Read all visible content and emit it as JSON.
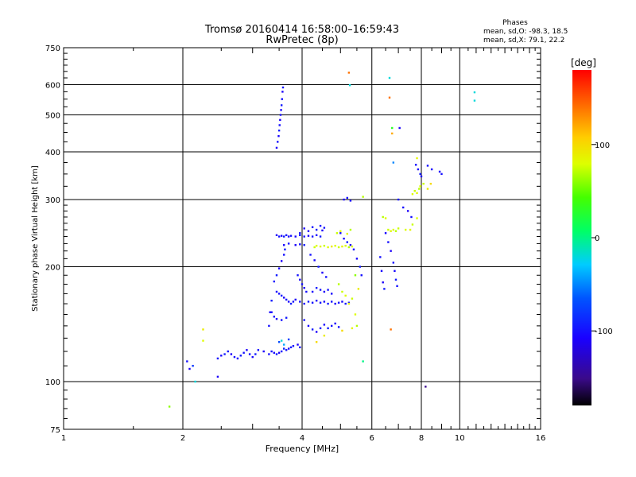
{
  "title_line1": "Tromsø 20160414 16:58:00–16:59:43",
  "title_line2": "RwPretec (8p)",
  "stats": {
    "heading": "Phases",
    "line_o": "mean, sd,O: -98.3, 18.5",
    "line_x": "mean, sd,X:  79.1, 22.2"
  },
  "colorbar": {
    "label": "[deg]",
    "ticks": [
      {
        "value": 100,
        "label": "100"
      },
      {
        "value": 0,
        "label": "0"
      },
      {
        "value": -100,
        "label": "-100"
      }
    ],
    "range": [
      -180,
      180
    ]
  },
  "chart_data": {
    "type": "scatter",
    "xlabel": "Frequency [MHz]",
    "ylabel": "Stationary phase Virtual Height [km]",
    "xscale": "log",
    "yscale": "log",
    "xlim": [
      1,
      16
    ],
    "ylim": [
      75,
      750
    ],
    "xticks": [
      {
        "value": 1,
        "label": "1"
      },
      {
        "value": 2,
        "label": "2"
      },
      {
        "value": 4,
        "label": "4"
      },
      {
        "value": 6,
        "label": "6"
      },
      {
        "value": 8,
        "label": "8"
      },
      {
        "value": 10,
        "label": "10"
      },
      {
        "value": 16,
        "label": "16"
      }
    ],
    "yticks": [
      {
        "value": 75,
        "label": "75"
      },
      {
        "value": 100,
        "label": "100"
      },
      {
        "value": 200,
        "label": "200"
      },
      {
        "value": 300,
        "label": "300"
      },
      {
        "value": 400,
        "label": "400"
      },
      {
        "value": 500,
        "label": "500"
      },
      {
        "value": 600,
        "label": "600"
      },
      {
        "value": 750,
        "label": "750"
      }
    ],
    "grid": true,
    "points": [
      [
        1.85,
        86,
        60
      ],
      [
        2.05,
        113,
        -100
      ],
      [
        2.08,
        108,
        -110
      ],
      [
        2.12,
        110,
        -80
      ],
      [
        2.15,
        100,
        -20
      ],
      [
        2.25,
        137,
        90
      ],
      [
        2.25,
        128,
        80
      ],
      [
        2.45,
        103,
        -110
      ],
      [
        2.45,
        115,
        -100
      ],
      [
        2.5,
        117,
        -105
      ],
      [
        2.55,
        118,
        -95
      ],
      [
        2.6,
        120,
        -100
      ],
      [
        2.65,
        118,
        -110
      ],
      [
        2.7,
        116,
        -100
      ],
      [
        2.75,
        115,
        -105
      ],
      [
        2.8,
        117,
        -95
      ],
      [
        2.85,
        119,
        -100
      ],
      [
        2.9,
        121,
        -110
      ],
      [
        2.95,
        118,
        -100
      ],
      [
        3.0,
        116,
        -105
      ],
      [
        3.05,
        118,
        -95
      ],
      [
        3.1,
        121,
        -100
      ],
      [
        3.2,
        120,
        -110
      ],
      [
        3.3,
        118,
        -100
      ],
      [
        3.35,
        120,
        -100
      ],
      [
        3.4,
        119,
        -105
      ],
      [
        3.45,
        118,
        -95
      ],
      [
        3.5,
        119,
        -110
      ],
      [
        3.55,
        120,
        -100
      ],
      [
        3.6,
        122,
        -90
      ],
      [
        3.65,
        121,
        -100
      ],
      [
        3.7,
        122,
        -105
      ],
      [
        3.75,
        123,
        -95
      ],
      [
        3.8,
        124,
        -100
      ],
      [
        3.9,
        125,
        -110
      ],
      [
        3.95,
        123,
        -100
      ],
      [
        3.5,
        127,
        -70
      ],
      [
        3.6,
        125,
        -40
      ],
      [
        3.7,
        129,
        -75
      ],
      [
        3.55,
        128,
        -20
      ],
      [
        3.3,
        140,
        -100
      ],
      [
        3.32,
        152,
        -105
      ],
      [
        3.35,
        163,
        -95
      ],
      [
        3.45,
        410,
        -110
      ],
      [
        3.47,
        425,
        -100
      ],
      [
        3.49,
        440,
        -105
      ],
      [
        3.5,
        455,
        -95
      ],
      [
        3.51,
        470,
        -100
      ],
      [
        3.52,
        485,
        -110
      ],
      [
        3.53,
        500,
        -100
      ],
      [
        3.54,
        515,
        -105
      ],
      [
        3.55,
        530,
        -95
      ],
      [
        3.56,
        550,
        -100
      ],
      [
        3.57,
        575,
        -110
      ],
      [
        3.58,
        590,
        -100
      ],
      [
        3.45,
        242,
        -110
      ],
      [
        3.5,
        240,
        -100
      ],
      [
        3.55,
        241,
        -105
      ],
      [
        3.6,
        240,
        -95
      ],
      [
        3.65,
        242,
        -100
      ],
      [
        3.7,
        240,
        -110
      ],
      [
        3.75,
        241,
        -100
      ],
      [
        3.85,
        240,
        -105
      ],
      [
        3.95,
        242,
        -95
      ],
      [
        4.05,
        240,
        -100
      ],
      [
        4.15,
        241,
        -110
      ],
      [
        4.25,
        240,
        -100
      ],
      [
        4.35,
        242,
        -105
      ],
      [
        4.45,
        240,
        -95
      ],
      [
        3.95,
        245,
        -100
      ],
      [
        4.05,
        252,
        -105
      ],
      [
        4.15,
        248,
        -110
      ],
      [
        4.25,
        254,
        -100
      ],
      [
        4.35,
        250,
        -95
      ],
      [
        4.45,
        256,
        -100
      ],
      [
        4.5,
        249,
        -110
      ],
      [
        4.55,
        253,
        -100
      ],
      [
        3.6,
        228,
        -105
      ],
      [
        3.7,
        230,
        -100
      ],
      [
        3.85,
        228,
        -110
      ],
      [
        3.95,
        229,
        -100
      ],
      [
        4.05,
        228,
        -95
      ],
      [
        3.45,
        172,
        -105
      ],
      [
        3.5,
        170,
        -100
      ],
      [
        3.55,
        168,
        -95
      ],
      [
        3.6,
        166,
        -110
      ],
      [
        3.65,
        164,
        -100
      ],
      [
        3.7,
        162,
        -105
      ],
      [
        3.75,
        160,
        -95
      ],
      [
        3.8,
        162,
        -100
      ],
      [
        3.85,
        164,
        -110
      ],
      [
        3.95,
        162,
        -100
      ],
      [
        4.05,
        160,
        -105
      ],
      [
        4.15,
        162,
        -95
      ],
      [
        4.25,
        161,
        -100
      ],
      [
        4.35,
        163,
        -110
      ],
      [
        4.45,
        161,
        -100
      ],
      [
        4.55,
        162,
        -105
      ],
      [
        4.65,
        160,
        -95
      ],
      [
        4.75,
        162,
        -100
      ],
      [
        4.85,
        160,
        -110
      ],
      [
        4.95,
        161,
        -100
      ],
      [
        5.05,
        162,
        -105
      ],
      [
        5.15,
        160,
        -95
      ],
      [
        5.25,
        161,
        -100
      ],
      [
        3.4,
        183,
        -100
      ],
      [
        3.45,
        190,
        -95
      ],
      [
        3.5,
        198,
        -105
      ],
      [
        3.55,
        207,
        -110
      ],
      [
        3.6,
        215,
        -100
      ],
      [
        3.62,
        222,
        -95
      ],
      [
        3.35,
        152,
        -105
      ],
      [
        3.4,
        148,
        -100
      ],
      [
        3.45,
        146,
        -110
      ],
      [
        3.55,
        145,
        -100
      ],
      [
        3.65,
        147,
        -95
      ],
      [
        3.9,
        190,
        -100
      ],
      [
        3.95,
        185,
        -105
      ],
      [
        4.0,
        180,
        -100
      ],
      [
        4.05,
        176,
        -110
      ],
      [
        4.1,
        172,
        -100
      ],
      [
        4.25,
        172,
        -105
      ],
      [
        4.35,
        176,
        -95
      ],
      [
        4.45,
        174,
        -100
      ],
      [
        4.55,
        172,
        -110
      ],
      [
        4.65,
        174,
        -100
      ],
      [
        4.75,
        170,
        -105
      ],
      [
        4.05,
        145,
        -100
      ],
      [
        4.15,
        140,
        -105
      ],
      [
        4.25,
        137,
        -95
      ],
      [
        4.35,
        135,
        -110
      ],
      [
        4.45,
        138,
        -100
      ],
      [
        4.55,
        141,
        -105
      ],
      [
        4.65,
        138,
        -95
      ],
      [
        4.75,
        140,
        -100
      ],
      [
        4.85,
        142,
        -110
      ],
      [
        4.95,
        139,
        -100
      ],
      [
        4.2,
        215,
        -100
      ],
      [
        4.3,
        208,
        -105
      ],
      [
        4.4,
        200,
        -95
      ],
      [
        4.5,
        193,
        -110
      ],
      [
        4.6,
        188,
        -100
      ],
      [
        5.0,
        245,
        -100
      ],
      [
        5.1,
        237,
        -105
      ],
      [
        5.2,
        232,
        -95
      ],
      [
        5.3,
        228,
        -110
      ],
      [
        5.4,
        222,
        -100
      ],
      [
        5.5,
        210,
        -105
      ],
      [
        5.6,
        200,
        -95
      ],
      [
        5.65,
        190,
        -100
      ],
      [
        5.1,
        300,
        -110
      ],
      [
        5.2,
        303,
        -100
      ],
      [
        5.3,
        298,
        -105
      ],
      [
        4.3,
        225,
        75
      ],
      [
        4.35,
        227,
        80
      ],
      [
        4.45,
        226,
        85
      ],
      [
        4.55,
        227,
        75
      ],
      [
        4.65,
        225,
        80
      ],
      [
        4.75,
        226,
        90
      ],
      [
        4.85,
        227,
        80
      ],
      [
        4.95,
        225,
        75
      ],
      [
        5.05,
        226,
        85
      ],
      [
        5.15,
        227,
        80
      ],
      [
        5.25,
        225,
        70
      ],
      [
        5.35,
        226,
        80
      ],
      [
        4.9,
        245,
        75
      ],
      [
        5.0,
        248,
        80
      ],
      [
        5.2,
        244,
        85
      ],
      [
        5.3,
        250,
        70
      ],
      [
        4.95,
        180,
        70
      ],
      [
        5.05,
        172,
        75
      ],
      [
        5.15,
        168,
        80
      ],
      [
        5.25,
        160,
        85
      ],
      [
        5.35,
        165,
        75
      ],
      [
        5.45,
        150,
        80
      ],
      [
        5.5,
        140,
        70
      ],
      [
        5.55,
        175,
        90
      ],
      [
        5.45,
        190,
        60
      ],
      [
        5.7,
        305,
        70
      ],
      [
        5.7,
        113,
        0
      ],
      [
        6.4,
        270,
        70
      ],
      [
        6.5,
        268,
        80
      ],
      [
        6.6,
        250,
        75
      ],
      [
        6.7,
        248,
        85
      ],
      [
        6.8,
        250,
        80
      ],
      [
        6.9,
        248,
        70
      ],
      [
        7.0,
        252,
        75
      ],
      [
        7.3,
        250,
        80
      ],
      [
        7.5,
        250,
        85
      ],
      [
        7.6,
        258,
        75
      ],
      [
        7.8,
        268,
        80
      ],
      [
        6.5,
        245,
        -105
      ],
      [
        6.6,
        232,
        -100
      ],
      [
        6.7,
        220,
        -110
      ],
      [
        6.8,
        205,
        -100
      ],
      [
        6.85,
        195,
        -105
      ],
      [
        6.9,
        185,
        -95
      ],
      [
        6.95,
        178,
        -100
      ],
      [
        6.3,
        212,
        -100
      ],
      [
        6.35,
        195,
        -105
      ],
      [
        6.4,
        182,
        -110
      ],
      [
        6.45,
        175,
        -95
      ],
      [
        7.0,
        300,
        -100
      ],
      [
        7.2,
        286,
        -105
      ],
      [
        7.4,
        280,
        -110
      ],
      [
        7.55,
        270,
        -100
      ],
      [
        7.6,
        310,
        80
      ],
      [
        7.7,
        316,
        75
      ],
      [
        7.8,
        312,
        85
      ],
      [
        7.9,
        320,
        70
      ],
      [
        7.95,
        325,
        80
      ],
      [
        8.1,
        330,
        75
      ],
      [
        8.3,
        320,
        90
      ],
      [
        7.75,
        370,
        -100
      ],
      [
        7.85,
        360,
        -105
      ],
      [
        7.95,
        350,
        -95
      ],
      [
        8.0,
        345,
        -110
      ],
      [
        8.3,
        368,
        -100
      ],
      [
        8.5,
        360,
        -105
      ],
      [
        8.9,
        355,
        -110
      ],
      [
        9.0,
        350,
        -100
      ],
      [
        7.8,
        385,
        85
      ],
      [
        8.45,
        330,
        100
      ],
      [
        5.25,
        645,
        140
      ],
      [
        5.28,
        598,
        -20
      ],
      [
        6.65,
        625,
        -20
      ],
      [
        6.65,
        555,
        140
      ],
      [
        6.75,
        462,
        30
      ],
      [
        6.75,
        447,
        120
      ],
      [
        7.05,
        462,
        -110
      ],
      [
        6.8,
        375,
        -50
      ],
      [
        6.7,
        137,
        140
      ],
      [
        8.2,
        97,
        -150
      ],
      [
        10.9,
        573,
        -20
      ],
      [
        10.9,
        545,
        -20
      ],
      [
        4.35,
        127,
        100
      ],
      [
        4.55,
        132,
        90
      ],
      [
        5.05,
        136,
        100
      ],
      [
        5.35,
        138,
        85
      ]
    ]
  }
}
